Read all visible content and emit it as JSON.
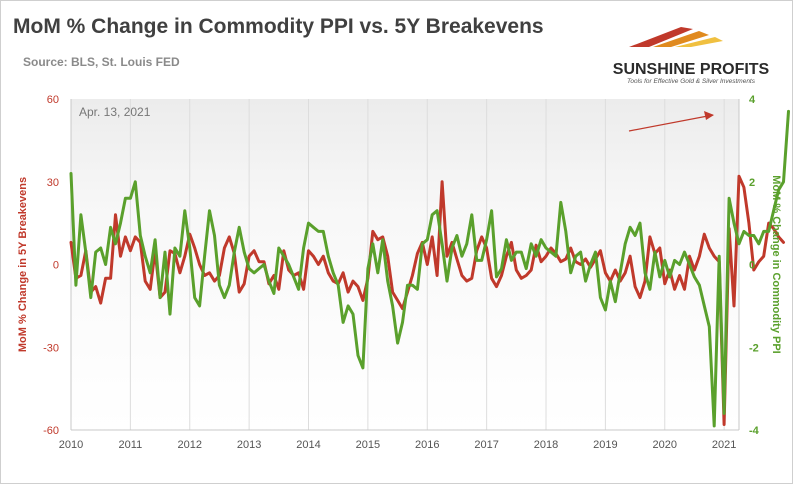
{
  "title": "MoM % Change in Commodity PPI vs. 5Y Breakevens",
  "subtitle": "Source: BLS, St. Louis FED",
  "logo": {
    "name": "SUNSHINE PROFITS",
    "tagline": "Tools for Effective Gold & Silver Investments"
  },
  "chart_data": {
    "type": "line",
    "annotation": "Apr. 13, 2021",
    "x_ticks": [
      "2010",
      "2011",
      "2012",
      "2013",
      "2014",
      "2015",
      "2016",
      "2017",
      "2018",
      "2019",
      "2020",
      "2021"
    ],
    "x_start": 2010.0,
    "x_end": 2021.25,
    "left_axis": {
      "label": "MoM % Change in 5Y Breakevens",
      "ylim": [
        -60,
        60
      ],
      "ticks": [
        60,
        30,
        0,
        -30,
        -60
      ],
      "color": "#c0392b"
    },
    "right_axis": {
      "label": "MoM % Change in Commodity PPI",
      "ylim": [
        -4,
        4
      ],
      "ticks": [
        4,
        2,
        0,
        -2,
        -4
      ],
      "color": "#5aa02c"
    },
    "grid": "vertical",
    "series": [
      {
        "name": "MoM % Change in 5Y Breakevens",
        "axis": "left",
        "color": "#c0392b",
        "x_start": 2010.0,
        "step": 0.08333,
        "values": [
          8,
          -5,
          -4,
          5,
          -10,
          -8,
          -14,
          -5,
          -5,
          18,
          3,
          10,
          5,
          10,
          8,
          -6,
          -9,
          5,
          -12,
          -10,
          5,
          4,
          -3,
          3,
          11,
          6,
          0,
          -4,
          -3,
          -6,
          -4,
          6,
          10,
          4,
          -10,
          -7,
          3,
          5,
          1,
          1,
          -7,
          -4,
          -9,
          5,
          -2,
          -4,
          -3,
          -9,
          5,
          3,
          0,
          3,
          -3,
          -6,
          -7,
          -3,
          -10,
          -6,
          -8,
          -13,
          -5,
          12,
          9,
          10,
          3,
          -10,
          -13,
          -16,
          -10,
          -4,
          4,
          8,
          0,
          10,
          -4,
          30,
          3,
          8,
          2,
          -4,
          -6,
          -5,
          5,
          10,
          6,
          -5,
          -8,
          -4,
          3,
          8,
          -2,
          -5,
          -4,
          -2,
          7,
          1,
          3,
          6,
          4,
          1,
          2,
          6,
          1,
          0,
          2,
          -1,
          2,
          5,
          -3,
          -6,
          -2,
          -6,
          -3,
          3,
          -8,
          -12,
          -6,
          10,
          4,
          6,
          -7,
          -2,
          -9,
          -4,
          -9,
          3,
          -2,
          3,
          11,
          6,
          3,
          1,
          -58,
          13,
          -15,
          32,
          28,
          15,
          -2,
          1,
          3,
          15,
          13,
          10,
          8
        ]
      },
      {
        "name": "MoM % Change in Commodity PPI",
        "axis": "right",
        "color": "#5aa02c",
        "x_start": 2010.0,
        "step": 0.08333,
        "values": [
          2.2,
          -0.5,
          1.2,
          0.3,
          -0.8,
          0.3,
          0.4,
          0,
          0.9,
          0.5,
          1.0,
          1.6,
          1.6,
          2.0,
          0.7,
          0.2,
          -0.2,
          0.6,
          -0.8,
          0.3,
          -1.2,
          0.4,
          0.2,
          1.3,
          0.4,
          -0.8,
          -1.0,
          0.2,
          1.3,
          0.7,
          -0.5,
          -0.8,
          -0.5,
          0.3,
          0.9,
          0.3,
          -0.1,
          -0.2,
          -0.1,
          0,
          -0.4,
          -0.7,
          0.4,
          0.2,
          0,
          -0.3,
          -0.6,
          0.4,
          1.0,
          0.9,
          0.8,
          0.8,
          0.2,
          -0.2,
          -0.5,
          -1.4,
          -1.0,
          -1.2,
          -2.2,
          -2.5,
          -0.1,
          0.5,
          -0.2,
          0.6,
          -0.4,
          -1.0,
          -1.9,
          -1.4,
          -0.5,
          -0.5,
          -0.6,
          0.5,
          0.6,
          1.2,
          1.3,
          0.5,
          -0.4,
          0.4,
          0.7,
          0.2,
          0.5,
          1.2,
          0.1,
          0.1,
          0.6,
          1.3,
          -0.3,
          -0.1,
          0.6,
          0.1,
          0.3,
          0.3,
          -0.1,
          0.5,
          0.2,
          0.6,
          0.4,
          0.3,
          0.2,
          1.5,
          0.8,
          -0.2,
          0.2,
          0.3,
          -0.4,
          0,
          0.3,
          -0.8,
          -1.1,
          -0.4,
          -0.9,
          -0.2,
          0.5,
          0.9,
          0.7,
          1.0,
          -0.2,
          -0.6,
          0.3,
          -0.3,
          0.1,
          -0.3,
          0.1,
          0,
          0.3,
          0,
          -0.3,
          -0.5,
          -1.0,
          -1.5,
          -3.9,
          0.2,
          -3.6,
          1.6,
          1.0,
          0.5,
          0.8,
          0.7,
          0.7,
          0.5,
          0.8,
          0.8,
          1.3,
          1.8,
          2.0,
          3.7
        ]
      }
    ]
  }
}
